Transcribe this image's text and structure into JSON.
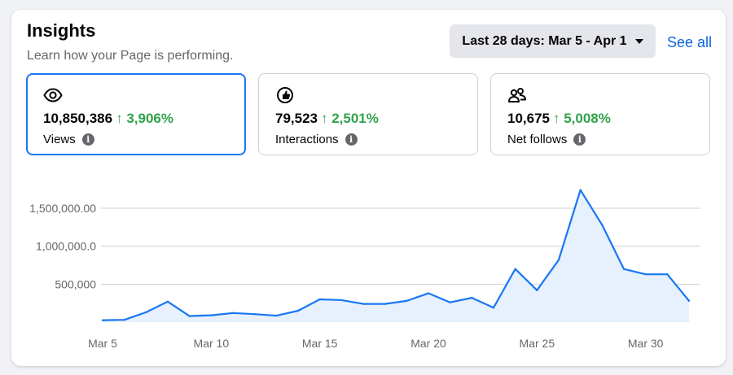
{
  "header": {
    "title": "Insights",
    "subtitle": "Learn how your Page is performing.",
    "date_range": "Last 28 days: Mar 5 - Apr 1",
    "see_all": "See all"
  },
  "metrics": [
    {
      "icon": "eye-icon",
      "value": "10,850,386",
      "delta": "↑ 3,906%",
      "label": "Views",
      "active": true
    },
    {
      "icon": "interactions-icon",
      "value": "79,523",
      "delta": "↑ 2,501%",
      "label": "Interactions",
      "active": false
    },
    {
      "icon": "people-icon",
      "value": "10,675",
      "delta": "↑ 5,008%",
      "label": "Net follows",
      "active": false
    }
  ],
  "colors": {
    "accent": "#1877f2",
    "positive": "#31a24c",
    "link": "#0a66d9"
  },
  "chart_data": {
    "type": "area",
    "series": [
      {
        "values": [
          25000,
          30000,
          130000,
          270000,
          80000,
          90000,
          120000,
          105000,
          85000,
          150000,
          300000,
          290000,
          240000,
          240000,
          280000,
          380000,
          260000,
          320000,
          190000,
          700000,
          420000,
          820000,
          1740000,
          1280000,
          700000,
          630000,
          630000,
          280000
        ]
      }
    ],
    "x_ticks": [
      "Mar 5",
      "Mar 10",
      "Mar 15",
      "Mar 20",
      "Mar 25",
      "Mar 30"
    ],
    "x_tick_index": [
      0,
      5,
      10,
      15,
      20,
      25
    ],
    "y_ticks": [
      {
        "value": 500000,
        "label": "500,000"
      },
      {
        "value": 1000000,
        "label": "1,000,000.0"
      },
      {
        "value": 1500000,
        "label": "1,500,000.00"
      }
    ],
    "ylim": [
      0,
      1500000
    ],
    "grid": true,
    "color": "#1877f2"
  }
}
